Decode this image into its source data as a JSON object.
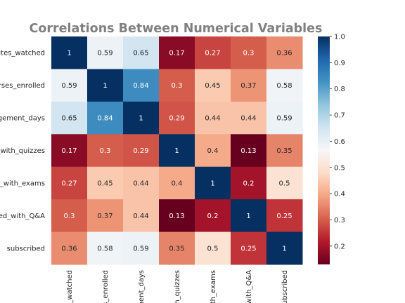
{
  "chart_data": {
    "type": "heatmap",
    "title": "Correlations Between Numerical Variables",
    "row_labels": [
      "minutes_watched",
      "courses_enrolled",
      "engagement_days",
      "engaged_with_quizzes",
      "engaged_with_exams",
      "engaged_with_Q&A",
      "subscribed"
    ],
    "row_labels_visible": [
      "nutes_watched",
      "urses_enrolled",
      "agement_days",
      "l_with_quizzes",
      "d_with_exams",
      "ged_with_Q&A",
      "subscribed"
    ],
    "col_labels_visible": [
      "s_watched",
      "s_enrolled",
      "nent_days",
      "h_quizzes",
      "ith_exams",
      "_with_Q&A",
      "subscribed"
    ],
    "values": [
      [
        1,
        0.59,
        0.65,
        0.17,
        0.27,
        0.3,
        0.36
      ],
      [
        0.59,
        1,
        0.84,
        0.3,
        0.45,
        0.37,
        0.58
      ],
      [
        0.65,
        0.84,
        1,
        0.29,
        0.44,
        0.44,
        0.59
      ],
      [
        0.17,
        0.3,
        0.29,
        1,
        0.4,
        0.13,
        0.35
      ],
      [
        0.27,
        0.45,
        0.44,
        0.4,
        1,
        0.2,
        0.5
      ],
      [
        0.3,
        0.37,
        0.44,
        0.13,
        0.2,
        1,
        0.25
      ],
      [
        0.36,
        0.58,
        0.59,
        0.35,
        0.5,
        0.25,
        1
      ]
    ],
    "colorbar": {
      "cmap": "RdBu",
      "vmin": 0.13,
      "vmax": 1.0,
      "ticks": [
        0.2,
        0.3,
        0.4,
        0.5,
        0.6,
        0.7,
        0.8,
        0.9,
        1.0
      ],
      "tick_labels": [
        "0.2",
        "0.3",
        "0.4",
        "0.5",
        "0.6",
        "0.7",
        "0.8",
        "0.9",
        "1.0"
      ]
    },
    "colors": {
      "title": "#808080",
      "text_light": "#ffffff",
      "text_dark": "#262626",
      "axis_text": "#262626"
    }
  }
}
